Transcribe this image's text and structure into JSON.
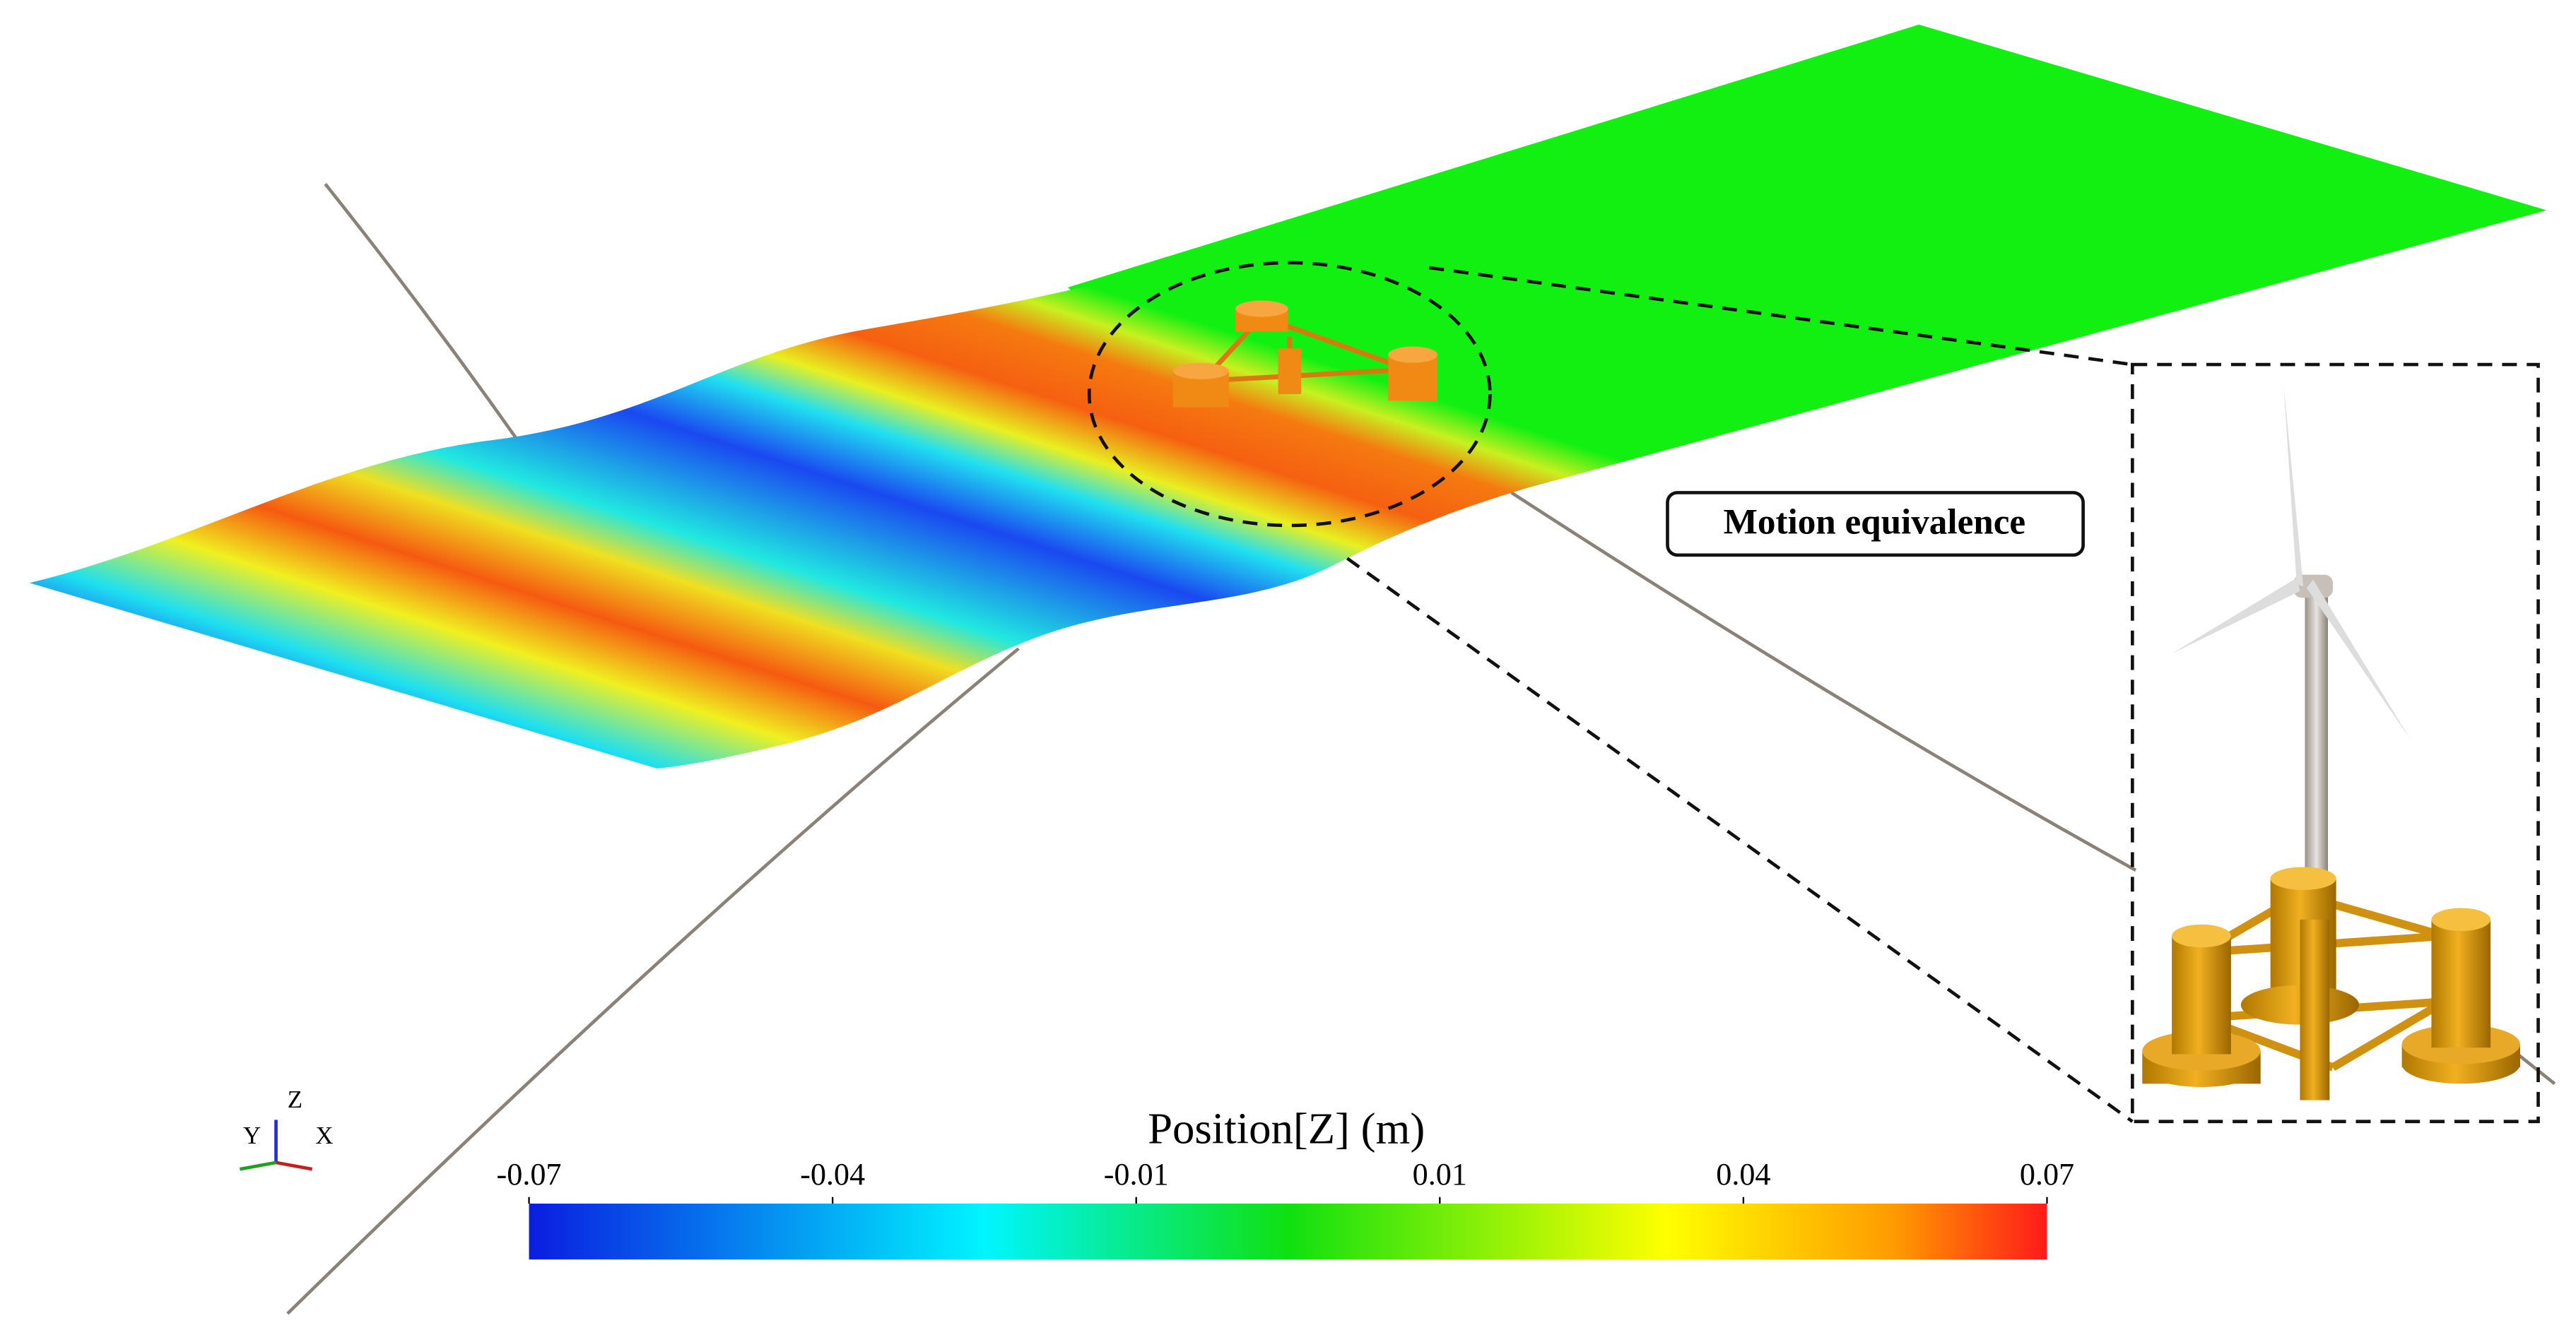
{
  "scene": {
    "callout": "Motion equivalence",
    "axes": {
      "x": "X",
      "y": "Y",
      "z": "Z"
    }
  },
  "colorbar": {
    "title": "Position[Z] (m)",
    "range": [
      -0.07,
      0.07
    ],
    "ticks": [
      -0.07,
      {
        "value": -0.042,
        "label": "-0.04"
      },
      {
        "value": -0.014,
        "label": "-0.01"
      },
      {
        "value": 0.014,
        "label": "0.01"
      },
      {
        "value": 0.042,
        "label": "0.04"
      },
      0.07
    ]
  }
}
